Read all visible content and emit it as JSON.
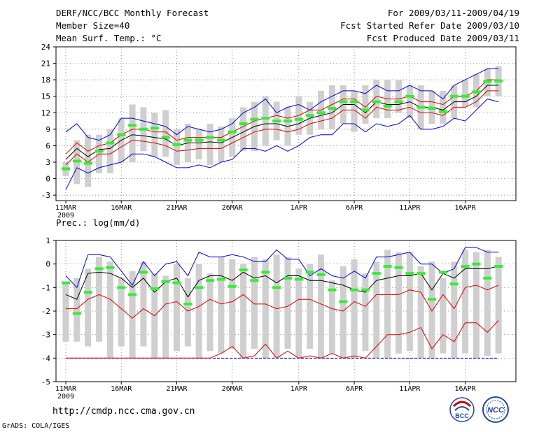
{
  "header": {
    "title": "DERF/NCC/BCC Monthly Forecast",
    "member_size": "Member Size=40",
    "variable": "Mean Surf. Temp.: °C",
    "period": "For 2009/03/11-2009/04/19",
    "start_date": "Fcst Started Refer Date 2009/03/10",
    "produced_date": "Fcst Produced Date 2009/03/11"
  },
  "footer": {
    "url": "http://cmdp.ncc.cma.gov.cn",
    "credit": "GrADS: COLA/IGES"
  },
  "logos": {
    "left": "BCC",
    "right": "NCC"
  },
  "colors": {
    "gray": "#cfcfcf",
    "green": "#33ee33",
    "red": "#dd0000",
    "blue": "#0000dd",
    "black": "#000000"
  },
  "chart_data": [
    {
      "type": "box-ensemble",
      "title": "Mean Surf. Temp.: °C",
      "x_days": 40,
      "x_ticks": [
        "11MAR",
        "16MAR",
        "21MAR",
        "26MAR",
        "1APR",
        "6APR",
        "11APR",
        "16APR"
      ],
      "x_tick_days": [
        0,
        5,
        10,
        15,
        21,
        26,
        31,
        36
      ],
      "x_year": "2009",
      "ylim": [
        -4,
        24
      ],
      "yticks": [
        -3,
        0,
        3,
        6,
        9,
        12,
        15,
        18,
        21,
        24
      ],
      "series": {
        "box_low": [
          0.5,
          -1,
          -1.5,
          1,
          1,
          3,
          3,
          5,
          4,
          4,
          2.5,
          3,
          3.5,
          2.5,
          3,
          4,
          5,
          5,
          6,
          7,
          6,
          8,
          8,
          9,
          9,
          10,
          8.5,
          10,
          11,
          11,
          12,
          11,
          9,
          10,
          10,
          11,
          13,
          13,
          15,
          15
        ],
        "box_high": [
          3,
          7,
          8,
          8,
          9,
          11,
          13.5,
          13,
          12,
          12.5,
          9,
          10,
          9,
          10,
          9.5,
          11,
          13,
          14,
          15,
          14,
          13,
          15,
          14,
          16,
          17,
          17,
          16,
          17,
          18,
          18,
          18,
          17,
          17,
          16,
          16,
          17,
          18,
          19,
          20,
          20.5
        ],
        "green": [
          1.8,
          3.2,
          2.8,
          5,
          6.5,
          8,
          9.7,
          9,
          9.2,
          7.5,
          6.2,
          7,
          7,
          7.5,
          7,
          8.5,
          10,
          10.8,
          11,
          10.5,
          10.5,
          10.8,
          11.5,
          12,
          12.8,
          14,
          14,
          12.5,
          14,
          13.2,
          14,
          15,
          13,
          12.8,
          12.2,
          15,
          15,
          15.8,
          17.7,
          17.8
        ],
        "red_upper": [
          4.5,
          6.5,
          5,
          6,
          6.5,
          8,
          9,
          9,
          8.5,
          8.5,
          7,
          7.5,
          7.5,
          7.5,
          7.5,
          8.5,
          9.5,
          10.5,
          11,
          11.5,
          11,
          11.5,
          12.5,
          12.5,
          13.5,
          14.5,
          14.5,
          13,
          15,
          14.5,
          14.5,
          15,
          14,
          14,
          13.5,
          15,
          15,
          16,
          18,
          18
        ],
        "mean": [
          3.5,
          5.5,
          4,
          5.3,
          5.5,
          7,
          8,
          7.8,
          7.5,
          7.2,
          6,
          6.5,
          6.5,
          6.7,
          6.5,
          7.5,
          8.5,
          9.5,
          10,
          10,
          9.5,
          10,
          11,
          11.5,
          12,
          13.5,
          13.5,
          12,
          14,
          13.5,
          13.5,
          14,
          13,
          13,
          12.5,
          14,
          14,
          15,
          17,
          17
        ],
        "red_lower": [
          2.5,
          4.5,
          3,
          4.5,
          4.5,
          5.8,
          7,
          6.8,
          6.5,
          6,
          5,
          5.2,
          5.5,
          5.5,
          5.5,
          6.5,
          7.5,
          8.5,
          9,
          9,
          8.5,
          9,
          10,
          10.5,
          11,
          12.5,
          12.5,
          11,
          13,
          12.5,
          12.5,
          13,
          12,
          12,
          11.5,
          13,
          13,
          14,
          16,
          16
        ],
        "blue_max": [
          8.5,
          10,
          7.5,
          7,
          8,
          11,
          11,
          10.5,
          10,
          9.5,
          8,
          9.5,
          9,
          8.5,
          9,
          10,
          12,
          13,
          14.5,
          12,
          13,
          13.5,
          12.5,
          14,
          15,
          16,
          16,
          15.5,
          17,
          16,
          16,
          17,
          16,
          16,
          14.5,
          17,
          18,
          19,
          20,
          20
        ],
        "blue_min": [
          -2,
          2,
          1,
          2,
          2.5,
          3,
          4.5,
          4.5,
          4,
          3,
          2,
          2,
          2.5,
          2,
          3,
          3.5,
          5.5,
          5.5,
          5,
          6,
          5,
          6,
          7.5,
          8,
          8,
          10,
          10,
          8.5,
          10,
          9.5,
          10,
          11.5,
          9,
          9,
          9.5,
          11,
          10.5,
          12.5,
          14.5,
          14
        ]
      }
    },
    {
      "type": "box-ensemble",
      "title": "Prec.: log(mm/d)",
      "x_days": 40,
      "x_ticks": [
        "11MAR",
        "16MAR",
        "21MAR",
        "26MAR",
        "1APR",
        "6APR",
        "11APR",
        "16APR"
      ],
      "x_tick_days": [
        0,
        5,
        10,
        15,
        21,
        26,
        31,
        36
      ],
      "x_year": "2009",
      "ylim": [
        -5,
        1
      ],
      "yticks": [
        -5,
        -4,
        -3,
        -2,
        -1,
        0,
        1
      ],
      "series": {
        "box_low": [
          -3.3,
          -3.3,
          -3.5,
          -3.3,
          -4,
          -3.5,
          -4,
          -3.5,
          -4,
          -4,
          -3.7,
          -3.5,
          -4,
          -3.7,
          -3.8,
          -3.6,
          -4,
          -3.6,
          -4,
          -4,
          -3.6,
          -4,
          -3.6,
          -4,
          -3.8,
          -4,
          -4,
          -3.7,
          -4,
          -4,
          -3.8,
          -3.7,
          -4,
          -4,
          -3.8,
          -4,
          -3.8,
          -4,
          -3.9,
          -3.8
        ],
        "box_high": [
          -0.8,
          -0.6,
          -0.2,
          0.3,
          0.1,
          -0.6,
          -0.3,
          0.1,
          -0.4,
          -0.5,
          0,
          -0.6,
          0,
          -0.4,
          0.3,
          0.2,
          0,
          0.3,
          0.2,
          0.4,
          0.3,
          -0.2,
          0,
          0.4,
          -0.7,
          -0.1,
          0.2,
          -0.4,
          0.1,
          0.6,
          0.5,
          0.5,
          -0.1,
          0.1,
          -0.6,
          0.1,
          0.6,
          0.5,
          0.6,
          0.3
        ],
        "green": [
          -0.8,
          -2.1,
          -1.2,
          -0.2,
          -0.15,
          -1,
          -1.3,
          -0.35,
          -1.05,
          -0.75,
          -0.8,
          -1.7,
          -1,
          -0.7,
          -0.65,
          -0.95,
          -0.25,
          -0.7,
          -0.35,
          -1,
          -0.6,
          -0.65,
          -0.35,
          -0.45,
          -1.1,
          -1.6,
          -1.1,
          -1.1,
          -0.4,
          -0.1,
          -0.15,
          -0.4,
          -0.4,
          -1.5,
          -0.35,
          -0.85,
          -0.1,
          0,
          -0.6,
          -0.1
        ],
        "blue_max": [
          -0.5,
          -1,
          0.4,
          0.4,
          0.3,
          -0.3,
          -0.9,
          0.1,
          -0.5,
          0,
          0.1,
          -0.5,
          0.5,
          0.3,
          0.3,
          0.4,
          0.3,
          0.1,
          0.1,
          0.6,
          0.2,
          0.2,
          -0.5,
          -0.2,
          -0.5,
          -0.6,
          -0.3,
          -0.6,
          0.3,
          0.3,
          0.4,
          0.5,
          0,
          0,
          -0.4,
          -0.2,
          0.7,
          0.7,
          0.5,
          0.5
        ],
        "mean": [
          -1.3,
          -1.5,
          -0.4,
          -0.35,
          -0.4,
          -0.6,
          -1,
          -0.6,
          -1.2,
          -0.75,
          -0.6,
          -1.4,
          -0.7,
          -0.5,
          -0.5,
          -0.7,
          -0.35,
          -0.6,
          -0.5,
          -0.8,
          -0.5,
          -0.5,
          -0.7,
          -0.7,
          -0.8,
          -0.9,
          -1.1,
          -1.2,
          -0.7,
          -0.6,
          -0.5,
          -0.5,
          -0.4,
          -1.1,
          -0.4,
          -0.6,
          -0.2,
          -0.2,
          -0.2,
          -0.1
        ],
        "red_upper": [
          -1.9,
          -1.9,
          -1.5,
          -1.3,
          -1.5,
          -1.9,
          -2.3,
          -1.9,
          -2.2,
          -1.7,
          -1.6,
          -2,
          -1.8,
          -1.5,
          -1.7,
          -1.6,
          -1.3,
          -1.7,
          -1.7,
          -1.9,
          -1.8,
          -1.5,
          -1.5,
          -1.7,
          -1.9,
          -2,
          -1.6,
          -1.8,
          -1.3,
          -1.3,
          -1.3,
          -1.1,
          -1.2,
          -2,
          -1.3,
          -1.9,
          -1,
          -0.9,
          -1.1,
          -0.9
        ],
        "red_lower": [
          -4,
          -4,
          -4,
          -4,
          -4,
          -4,
          -4,
          -4,
          -4,
          -4,
          -4,
          -4,
          -4,
          -4,
          -3.8,
          -3.5,
          -4,
          -3.9,
          -3.4,
          -4,
          -3.7,
          -4,
          -3.9,
          -4,
          -3.8,
          -4,
          -3.9,
          -4,
          -3.5,
          -3,
          -3,
          -2.9,
          -2.7,
          -3.6,
          -3,
          -3.3,
          -2.5,
          -2.5,
          -2.9,
          -2.4
        ],
        "blue_min": [
          -4,
          -4,
          -4,
          -4,
          -4,
          -4,
          -4,
          -4,
          -4,
          -4,
          -4,
          -4,
          -4,
          -4,
          -4,
          -4,
          -4,
          -4,
          -4,
          -4,
          -4,
          -4,
          -4,
          -4,
          -4,
          -4,
          -4,
          -4,
          -4,
          -4,
          -4,
          -4,
          -4,
          -4,
          -4,
          -4,
          -4,
          -4,
          -4,
          -4
        ]
      }
    }
  ]
}
